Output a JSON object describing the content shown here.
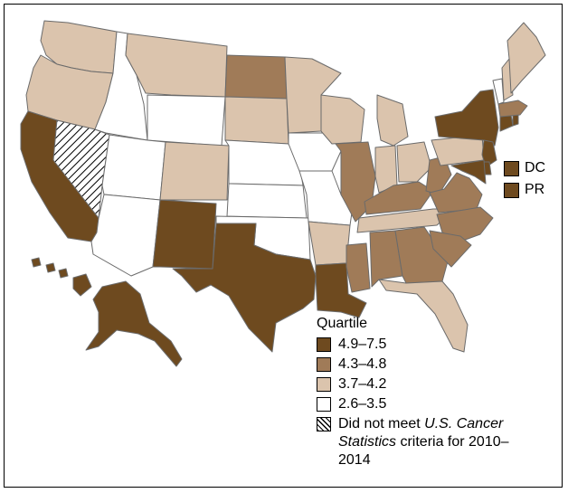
{
  "legend": {
    "title": "Quartile",
    "items": [
      {
        "key": "q1",
        "label": "4.9–7.5",
        "color": "#6e4a1f"
      },
      {
        "key": "q2",
        "label": "4.3–4.8",
        "color": "#a07b58"
      },
      {
        "key": "q3",
        "label": "3.7–4.2",
        "color": "#dbc4ad"
      },
      {
        "key": "q4",
        "label": "2.6–3.5",
        "color": "#ffffff"
      }
    ],
    "excluded": {
      "pre": "Did not meet ",
      "italic": "U.S. Cancer Statistics",
      "post": " criteria for 2010–2014"
    }
  },
  "territories": [
    {
      "label": "DC",
      "quartile": "q1"
    },
    {
      "label": "PR",
      "quartile": "q1"
    }
  ],
  "states": {
    "WA": "q3",
    "OR": "q3",
    "CA": "q1",
    "NV": "excluded",
    "ID": "q4",
    "MT": "q3",
    "WY": "q4",
    "UT": "q4",
    "AZ": "q4",
    "CO": "q3",
    "NM": "q1",
    "ND": "q2",
    "SD": "q3",
    "NE": "q4",
    "KS": "q4",
    "OK": "q4",
    "TX": "q1",
    "MN": "q3",
    "IA": "q4",
    "MO": "q4",
    "AR": "q3",
    "LA": "q1",
    "WI": "q3",
    "IL": "q2",
    "MS": "q2",
    "MI": "q3",
    "IN": "q3",
    "KY": "q2",
    "TN": "q3",
    "AL": "q2",
    "OH": "q3",
    "GA": "q2",
    "FL": "q3",
    "WV": "q2",
    "VA": "q2",
    "NC": "q2",
    "SC": "q2",
    "PA": "q3",
    "NY": "q1",
    "NJ": "q1",
    "DE": "q1",
    "MD": "q1",
    "CT": "q1",
    "RI": "q1",
    "MA": "q2",
    "VT": "q4",
    "NH": "q3",
    "ME": "q3",
    "AK": "q1",
    "HI": "q1"
  }
}
